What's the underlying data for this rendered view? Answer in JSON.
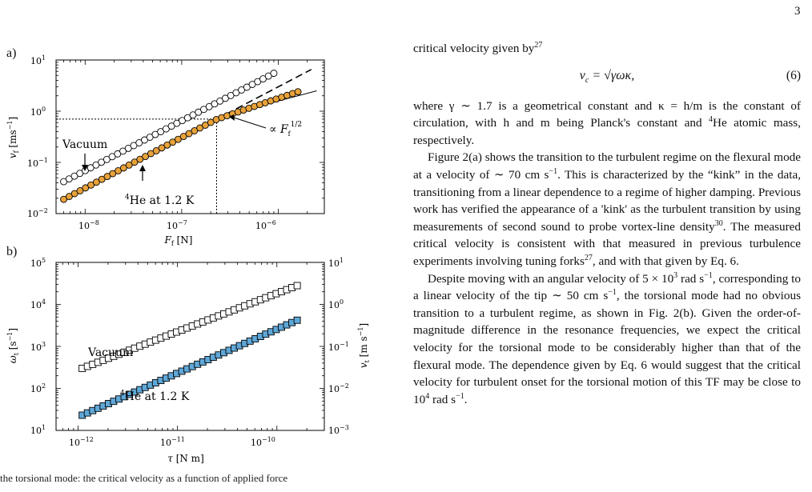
{
  "page_number": "3",
  "figure": {
    "panel_a_label": "a)",
    "panel_b_label": "b)",
    "caption_fragment": "the torsional mode: the critical velocity as a function of applied force"
  },
  "chart_data": [
    {
      "type": "scatter",
      "panel": "a)",
      "xlabel": "F_f [N]",
      "ylabel": "v_f [ms^-1]",
      "xscale": "log",
      "yscale": "log",
      "xlim": [
        5e-09,
        3e-06
      ],
      "ylim": [
        0.01,
        10
      ],
      "x_ticks": [
        "10^-8",
        "10^-7",
        "10^-6"
      ],
      "y_ticks": [
        "10^-2",
        "10^-1",
        "10^0",
        "10^1"
      ],
      "annotations": [
        "Vacuum",
        "4He at 1.2 K",
        "∝ F_f^1/2"
      ],
      "guide_lines": {
        "critical_v": 0.7,
        "critical_F": 2.3e-07
      },
      "series": [
        {
          "name": "Vacuum",
          "marker": "open-circle",
          "color": "#ffffff",
          "x_range": [
            6e-09,
            9e-07
          ],
          "y_start": 0.042,
          "y_end": 5.5
        },
        {
          "name": "4He at 1.2 K",
          "marker": "filled-circle",
          "color": "#e8a23a",
          "x_range": [
            6e-09,
            1.6e-06
          ],
          "y_start": 0.019,
          "y_end": 2.4
        }
      ]
    },
    {
      "type": "scatter",
      "panel": "b)",
      "xlabel": "τ [N m]",
      "ylabel": "ω_t [s^-1]",
      "y2label": "v_t [m s^-1]",
      "xscale": "log",
      "yscale": "log",
      "xlim": [
        6e-13,
        3e-10
      ],
      "ylim": [
        10,
        100000
      ],
      "y2lim": [
        0.001,
        10
      ],
      "x_ticks": [
        "10^-12",
        "10^-11",
        "10^-10"
      ],
      "y_ticks": [
        "10^1",
        "10^2",
        "10^3",
        "10^4",
        "10^5"
      ],
      "y2_ticks": [
        "10^-3",
        "10^-2",
        "10^-1",
        "10^0",
        "10^1"
      ],
      "annotations": [
        "Vacuum",
        "4He at 1.2 K"
      ],
      "series": [
        {
          "name": "Vacuum",
          "marker": "open-square",
          "color": "#ffffff",
          "x_range": [
            1.1e-12,
            1.6e-10
          ],
          "y_start": 300,
          "y_end": 28000
        },
        {
          "name": "4He at 1.2 K",
          "marker": "filled-square",
          "color": "#5fa8d8",
          "x_range": [
            1.1e-12,
            1.6e-10
          ],
          "y_start": 23,
          "y_end": 4200
        }
      ]
    }
  ],
  "text": {
    "p1_a": "critical velocity given by",
    "p1_ref": "27",
    "eq_lhs": "v",
    "eq_sub": "c",
    "eq_rhs": "= √γωκ,",
    "eq_num": "(6)",
    "p2_a": "where γ ∼ 1.7 is a geometrical constant and κ = h/m is the constant of circulation, with h and m being Planck's constant and",
    "p2_sup": "4",
    "p2_b": "He atomic mass, respectively.",
    "p3_a": "Figure 2(a) shows the transition to the turbulent regime on the flexural mode at a velocity of ∼ 70 cm s",
    "p3_sup1": "−1",
    "p3_b": ". This is characterized by the “kink” in the data, transitioning from a linear dependence to a regime of higher damping. Previous work has verified the appearance of a 'kink' as the turbulent transition by using measurements of second sound to probe vortex-line density",
    "p3_ref1": "30",
    "p3_c": ". The measured critical velocity is consistent with that measured in previous turbulence experiments involving tuning forks",
    "p3_ref2": "27",
    "p3_d": ", and with that given by Eq. 6.",
    "p4_a": "Despite moving with an angular velocity of 5 × 10",
    "p4_sup1": "3",
    "p4_b": " rad s",
    "p4_sup2": "−1",
    "p4_c": ", corresponding to a linear velocity of the tip ∼ 50 cm s",
    "p4_sup3": "−1",
    "p4_d": ", the torsional mode had no obvious transition to a turbulent regime, as shown in Fig. 2(b). Given the order-of-magnitude difference in the resonance frequencies, we expect the critical velocity for the torsional mode to be considerably higher than that of the flexural mode. The dependence given by Eq. 6 would suggest that the critical velocity for turbulent onset for the torsional motion of this TF may be close to 10",
    "p4_sup4": "4",
    "p4_e": " rad s",
    "p4_sup5": "−1",
    "p4_f": "."
  }
}
